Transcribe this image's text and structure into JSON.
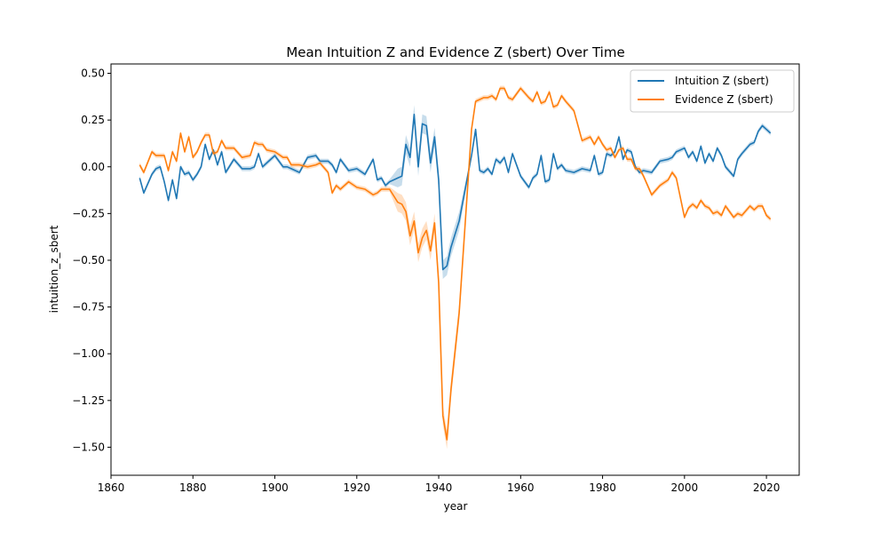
{
  "chart_data": {
    "type": "line",
    "title": "Mean Intuition Z and Evidence Z (sbert) Over Time",
    "xlabel": "year",
    "ylabel": "intuition_z_sbert",
    "xlim": [
      1860,
      2028
    ],
    "ylim": [
      -1.65,
      0.55
    ],
    "x_ticks": [
      1860,
      1880,
      1900,
      1920,
      1940,
      1960,
      1980,
      2000,
      2020
    ],
    "y_ticks": [
      0.5,
      0.25,
      0.0,
      -0.25,
      -0.5,
      -0.75,
      -1.0,
      -1.25,
      -1.5
    ],
    "y_tick_labels": [
      "0.50",
      "0.25",
      "0.00",
      "−0.25",
      "−0.50",
      "−0.75",
      "−1.00",
      "−1.25",
      "−1.50"
    ],
    "grid": false,
    "legend_position": "top-right",
    "x": [
      1867,
      1868,
      1870,
      1871,
      1872,
      1873,
      1874,
      1875,
      1876,
      1877,
      1878,
      1879,
      1880,
      1881,
      1882,
      1883,
      1884,
      1885,
      1886,
      1887,
      1888,
      1890,
      1892,
      1894,
      1895,
      1896,
      1897,
      1898,
      1900,
      1902,
      1903,
      1904,
      1906,
      1908,
      1910,
      1911,
      1913,
      1914,
      1915,
      1916,
      1918,
      1920,
      1922,
      1924,
      1925,
      1926,
      1927,
      1928,
      1930,
      1931,
      1932,
      1933,
      1934,
      1935,
      1936,
      1937,
      1938,
      1939,
      1940,
      1941,
      1942,
      1943,
      1945,
      1948,
      1949,
      1950,
      1951,
      1952,
      1953,
      1954,
      1955,
      1956,
      1957,
      1958,
      1960,
      1962,
      1963,
      1964,
      1965,
      1966,
      1967,
      1968,
      1969,
      1970,
      1971,
      1973,
      1975,
      1977,
      1978,
      1979,
      1980,
      1981,
      1982,
      1983,
      1984,
      1985,
      1986,
      1987,
      1988,
      1989,
      1990,
      1992,
      1994,
      1996,
      1997,
      1998,
      2000,
      2001,
      2002,
      2003,
      2004,
      2005,
      2006,
      2007,
      2008,
      2009,
      2010,
      2012,
      2013,
      2014,
      2016,
      2017,
      2018,
      2019,
      2020,
      2021
    ],
    "series": [
      {
        "name": "Intuition Z (sbert)",
        "color": "#1f77b4",
        "values": [
          -0.06,
          -0.14,
          -0.04,
          -0.01,
          0.0,
          -0.08,
          -0.18,
          -0.07,
          -0.17,
          0.0,
          -0.04,
          -0.03,
          -0.07,
          -0.04,
          0.0,
          0.12,
          0.04,
          0.09,
          0.01,
          0.08,
          -0.03,
          0.04,
          -0.01,
          -0.01,
          0.0,
          0.07,
          0.0,
          0.02,
          0.06,
          0.0,
          0.0,
          -0.01,
          -0.03,
          0.05,
          0.06,
          0.03,
          0.03,
          0.01,
          -0.03,
          0.04,
          -0.02,
          -0.01,
          -0.04,
          0.04,
          -0.07,
          -0.06,
          -0.1,
          -0.08,
          -0.06,
          -0.05,
          0.12,
          0.05,
          0.28,
          0.0,
          0.23,
          0.22,
          0.02,
          0.16,
          -0.07,
          -0.55,
          -0.53,
          -0.43,
          -0.29,
          0.06,
          0.2,
          -0.02,
          -0.03,
          -0.01,
          -0.04,
          0.04,
          0.02,
          0.05,
          -0.03,
          0.07,
          -0.05,
          -0.11,
          -0.06,
          -0.04,
          0.06,
          -0.08,
          -0.07,
          0.07,
          -0.01,
          0.01,
          -0.02,
          -0.03,
          -0.01,
          -0.02,
          0.06,
          -0.04,
          -0.03,
          0.07,
          0.06,
          0.08,
          0.16,
          0.04,
          0.09,
          0.08,
          0.0,
          -0.03,
          -0.02,
          -0.03,
          0.03,
          0.04,
          0.05,
          0.08,
          0.1,
          0.05,
          0.08,
          0.03,
          0.11,
          0.02,
          0.07,
          0.03,
          0.1,
          0.06,
          0.0,
          -0.05,
          0.04,
          0.07,
          0.12,
          0.13,
          0.19,
          0.22,
          0.2,
          0.18
        ]
      },
      {
        "name": "Evidence Z (sbert)",
        "color": "#ff7f0e",
        "values": [
          0.01,
          -0.03,
          0.08,
          0.06,
          0.06,
          0.06,
          -0.02,
          0.08,
          0.03,
          0.18,
          0.08,
          0.16,
          0.05,
          0.08,
          0.13,
          0.17,
          0.17,
          0.07,
          0.08,
          0.14,
          0.1,
          0.1,
          0.05,
          0.06,
          0.13,
          0.12,
          0.12,
          0.09,
          0.08,
          0.05,
          0.05,
          0.01,
          0.01,
          0.0,
          0.01,
          0.02,
          -0.03,
          -0.14,
          -0.1,
          -0.12,
          -0.08,
          -0.11,
          -0.12,
          -0.15,
          -0.14,
          -0.12,
          -0.12,
          -0.12,
          -0.19,
          -0.2,
          -0.24,
          -0.37,
          -0.29,
          -0.46,
          -0.38,
          -0.34,
          -0.45,
          -0.3,
          -0.62,
          -1.33,
          -1.46,
          -1.19,
          -0.78,
          0.2,
          0.35,
          0.36,
          0.37,
          0.37,
          0.38,
          0.36,
          0.42,
          0.42,
          0.37,
          0.36,
          0.42,
          0.37,
          0.35,
          0.4,
          0.34,
          0.35,
          0.4,
          0.32,
          0.33,
          0.38,
          0.35,
          0.3,
          0.14,
          0.16,
          0.12,
          0.16,
          0.12,
          0.09,
          0.1,
          0.05,
          0.09,
          0.1,
          0.04,
          0.04,
          -0.01,
          -0.01,
          -0.05,
          -0.15,
          -0.1,
          -0.07,
          -0.03,
          -0.06,
          -0.27,
          -0.22,
          -0.2,
          -0.22,
          -0.18,
          -0.21,
          -0.22,
          -0.25,
          -0.24,
          -0.26,
          -0.21,
          -0.27,
          -0.25,
          -0.26,
          -0.21,
          -0.23,
          -0.21,
          -0.21,
          -0.26,
          -0.28
        ]
      }
    ]
  }
}
